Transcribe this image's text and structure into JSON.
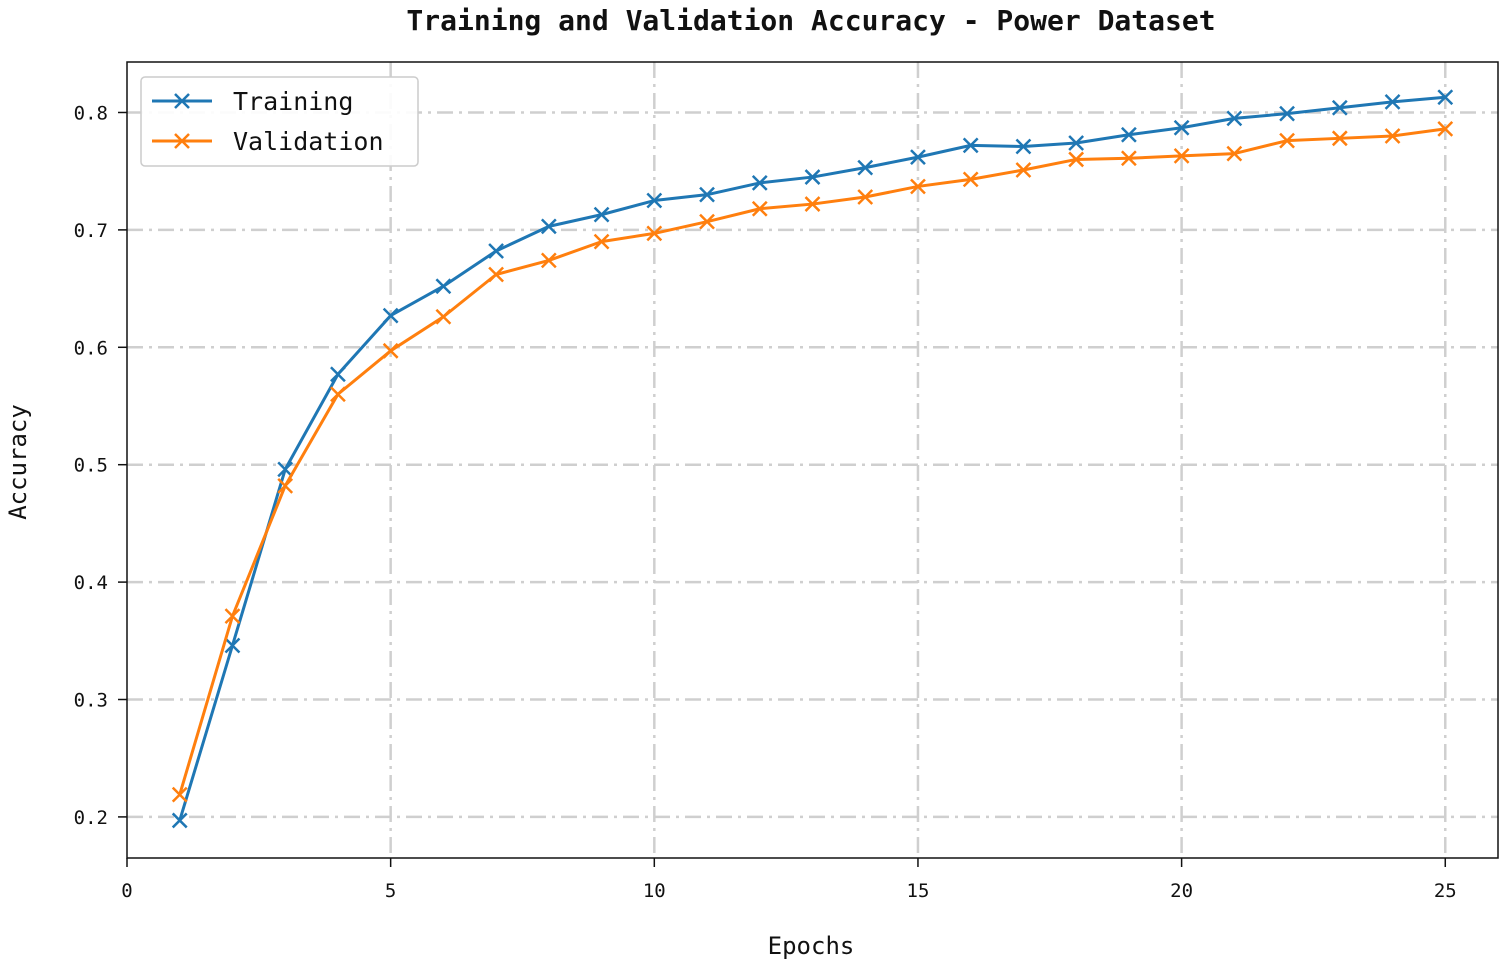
{
  "chart_data": {
    "type": "line",
    "title": "Training and Validation Accuracy - Power Dataset",
    "xlabel": "Epochs",
    "ylabel": "Accuracy",
    "xlim": [
      0,
      26
    ],
    "ylim": [
      0.165,
      0.843
    ],
    "xticks": [
      0,
      5,
      10,
      15,
      20,
      25
    ],
    "yticks": [
      0.2,
      0.3,
      0.4,
      0.5,
      0.6,
      0.7,
      0.8
    ],
    "grid": true,
    "legend_position": "top-left",
    "x": [
      1,
      2,
      3,
      4,
      5,
      6,
      7,
      8,
      9,
      10,
      11,
      12,
      13,
      14,
      15,
      16,
      17,
      18,
      19,
      20,
      21,
      22,
      23,
      24,
      25
    ],
    "series": [
      {
        "name": "Training",
        "color": "#1f77b4",
        "marker": "x",
        "values": [
          0.197,
          0.346,
          0.496,
          0.577,
          0.627,
          0.652,
          0.682,
          0.703,
          0.713,
          0.725,
          0.73,
          0.74,
          0.745,
          0.753,
          0.762,
          0.772,
          0.771,
          0.774,
          0.781,
          0.787,
          0.795,
          0.799,
          0.804,
          0.809,
          0.813
        ]
      },
      {
        "name": "Validation",
        "color": "#ff7f0e",
        "marker": "x",
        "values": [
          0.219,
          0.371,
          0.482,
          0.56,
          0.597,
          0.626,
          0.662,
          0.674,
          0.69,
          0.697,
          0.707,
          0.718,
          0.722,
          0.728,
          0.737,
          0.743,
          0.751,
          0.76,
          0.761,
          0.763,
          0.765,
          0.776,
          0.778,
          0.78,
          0.786
        ]
      }
    ]
  }
}
